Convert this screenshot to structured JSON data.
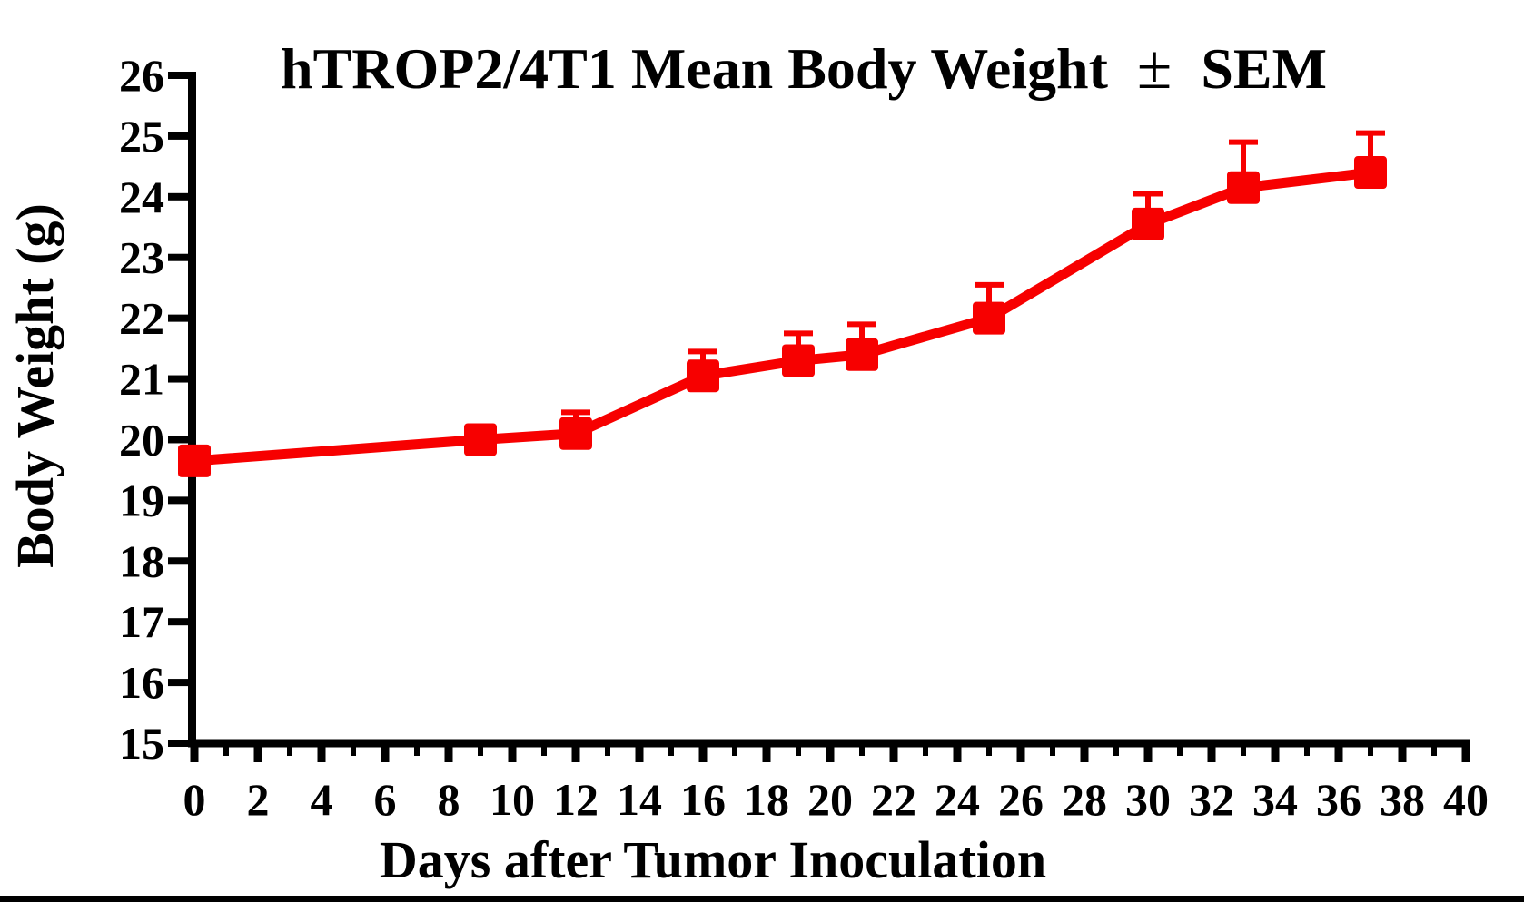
{
  "chart_data": {
    "type": "line",
    "title": "hTROP2/4T1 Mean Body Weight ± SEM",
    "title_parts": {
      "prefix": "hTROP2/4T1 Mean Body Weight",
      "pm": "±",
      "suffix": "SEM"
    },
    "xlabel": "Days after Tumor Inoculation",
    "ylabel": "Body Weight (g)",
    "grid": false,
    "legend": "none",
    "axis_color": "#000000",
    "background_color": "#ffffff",
    "bottom_bar_color": "#000000",
    "x_axis": {
      "min": 0,
      "max": 40,
      "major_ticks": [
        0,
        2,
        4,
        6,
        8,
        10,
        12,
        14,
        16,
        18,
        20,
        22,
        24,
        26,
        28,
        30,
        32,
        34,
        36,
        38,
        40
      ],
      "minor_tick_step": 1
    },
    "y_axis": {
      "min": 15,
      "max": 26,
      "ticks": [
        15,
        16,
        17,
        18,
        19,
        20,
        21,
        22,
        23,
        24,
        25,
        26
      ]
    },
    "series": [
      {
        "name": "hTROP2/4T1 mean body weight",
        "color": "#f70000",
        "marker": "square",
        "error_bars": "upper SEM only",
        "x": [
          0,
          9,
          12,
          16,
          19,
          21,
          25,
          30,
          33,
          37
        ],
        "y": [
          19.65,
          20.0,
          20.1,
          21.05,
          21.3,
          21.4,
          22.0,
          23.55,
          24.15,
          24.4
        ],
        "sem_upper": [
          0,
          0,
          0.35,
          0.4,
          0.45,
          0.5,
          0.55,
          0.5,
          0.75,
          0.65
        ]
      }
    ]
  }
}
